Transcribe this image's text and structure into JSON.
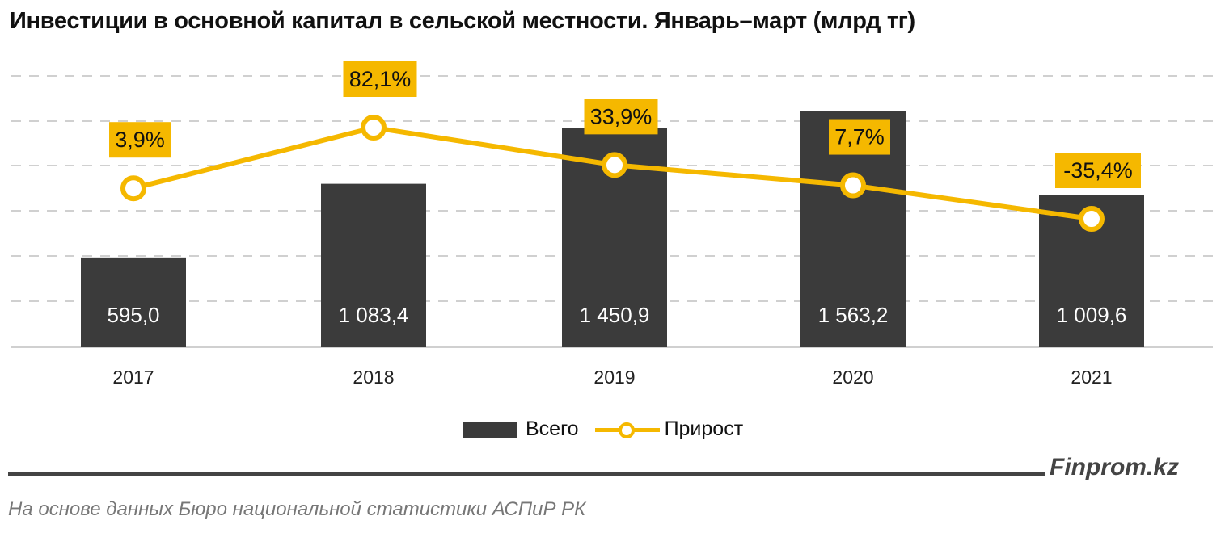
{
  "header": {
    "title": "Инвестиции в основной капитал в сельской местности. Январь–март (млрд тг)"
  },
  "legend": {
    "bar_label": "Всего",
    "line_label": "Прирост"
  },
  "footer": {
    "brand": "Finprom.kz",
    "source": "На основе данных  Бюро национальной  статистики АСПиР РК"
  },
  "colors": {
    "bar": "#3b3b3b",
    "line": "#f5b800",
    "label_box": "#f5b800"
  },
  "chart_data": {
    "type": "bar",
    "title": "Инвестиции в основной капитал в сельской местности. Январь–март (млрд тг)",
    "categories": [
      "2017",
      "2018",
      "2019",
      "2020",
      "2021"
    ],
    "series": [
      {
        "name": "Всего",
        "type": "bar",
        "values": [
          595.0,
          1083.4,
          1450.9,
          1563.2,
          1009.6
        ],
        "labels": [
          "595,0",
          "1 083,4",
          "1 450,9",
          "1 563,2",
          "1 009,6"
        ]
      },
      {
        "name": "Прирост",
        "type": "line",
        "values": [
          3.9,
          82.1,
          33.9,
          7.7,
          -35.4
        ],
        "labels": [
          "3,9%",
          "82,1%",
          "33,9%",
          "7,7%",
          "-35,4%"
        ]
      }
    ],
    "xlabel": "",
    "ylabel": "",
    "grid": true,
    "legend_position": "bottom"
  }
}
